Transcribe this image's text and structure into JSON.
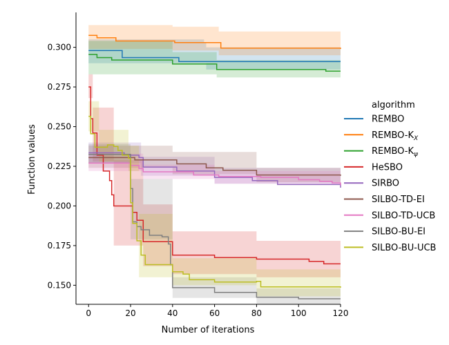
{
  "chart_data": {
    "type": "line",
    "xlabel": "Number of iterations",
    "ylabel": "Function values",
    "xlim": [
      -6,
      120
    ],
    "ylim": [
      0.138,
      0.322
    ],
    "x_ticks": [
      0,
      20,
      40,
      60,
      80,
      100,
      120
    ],
    "y_ticks": [
      0.15,
      0.175,
      0.2,
      0.225,
      0.25,
      0.275,
      0.3
    ],
    "y_tick_labels": [
      "0.150",
      "0.175",
      "0.200",
      "0.225",
      "0.250",
      "0.275",
      "0.300"
    ],
    "grid": false,
    "legend": {
      "title": "algorithm",
      "placement": "right"
    },
    "series": [
      {
        "name": "REMBO",
        "label_main": "REMBO",
        "label_sub": "",
        "color": "#1f77b4",
        "steps": [
          [
            0,
            0.298
          ],
          [
            15,
            0.298
          ],
          [
            16,
            0.2935
          ],
          [
            42,
            0.2935
          ],
          [
            43,
            0.291
          ],
          [
            120,
            0.291
          ]
        ],
        "band": [
          [
            0,
            0.29,
            0.305
          ],
          [
            55,
            0.29,
            0.303
          ],
          [
            56,
            0.286,
            0.3
          ],
          [
            120,
            0.286,
            0.3
          ]
        ]
      },
      {
        "name": "REMBO-K_X",
        "label_main": "REMBO-K",
        "label_sub": "X",
        "color": "#ff7f0e",
        "steps": [
          [
            0,
            0.3075
          ],
          [
            3,
            0.3075
          ],
          [
            4,
            0.306
          ],
          [
            12,
            0.306
          ],
          [
            13,
            0.304
          ],
          [
            40,
            0.304
          ],
          [
            41,
            0.303
          ],
          [
            62,
            0.303
          ],
          [
            63,
            0.2995
          ],
          [
            120,
            0.299
          ]
        ],
        "band": [
          [
            0,
            0.299,
            0.314
          ],
          [
            40,
            0.298,
            0.313
          ],
          [
            62,
            0.295,
            0.31
          ],
          [
            120,
            0.293,
            0.306
          ]
        ]
      },
      {
        "name": "REMBO-K_psi",
        "label_main": "REMBO-K",
        "label_sub": "ψ",
        "color": "#2ca02c",
        "steps": [
          [
            0,
            0.2955
          ],
          [
            3,
            0.2955
          ],
          [
            4,
            0.2935
          ],
          [
            10,
            0.2935
          ],
          [
            11,
            0.292
          ],
          [
            39,
            0.292
          ],
          [
            40,
            0.2895
          ],
          [
            60,
            0.2895
          ],
          [
            61,
            0.286
          ],
          [
            112,
            0.286
          ],
          [
            113,
            0.285
          ],
          [
            120,
            0.285
          ]
        ],
        "band": [
          [
            0,
            0.283,
            0.304
          ],
          [
            40,
            0.283,
            0.297
          ],
          [
            61,
            0.281,
            0.292
          ],
          [
            120,
            0.279,
            0.291
          ]
        ]
      },
      {
        "name": "HeSBO",
        "label_main": "HeSBO",
        "label_sub": "",
        "color": "#d62728",
        "steps": [
          [
            0,
            0.275
          ],
          [
            1,
            0.255
          ],
          [
            2,
            0.246
          ],
          [
            4,
            0.232
          ],
          [
            7,
            0.222
          ],
          [
            10,
            0.216
          ],
          [
            11,
            0.207
          ],
          [
            12,
            0.2
          ],
          [
            20,
            0.2
          ],
          [
            21,
            0.196
          ],
          [
            23,
            0.191
          ],
          [
            26,
            0.1775
          ],
          [
            38,
            0.1775
          ],
          [
            40,
            0.169
          ],
          [
            60,
            0.1675
          ],
          [
            80,
            0.1665
          ],
          [
            105,
            0.165
          ],
          [
            112,
            0.1635
          ],
          [
            120,
            0.1635
          ]
        ],
        "band": [
          [
            0,
            0.268,
            0.283
          ],
          [
            2,
            0.228,
            0.262
          ],
          [
            12,
            0.175,
            0.229
          ],
          [
            26,
            0.162,
            0.201
          ],
          [
            40,
            0.157,
            0.184
          ],
          [
            80,
            0.155,
            0.178
          ],
          [
            120,
            0.15,
            0.179
          ]
        ]
      },
      {
        "name": "SIRBO",
        "label_main": "SIRBO",
        "label_sub": "",
        "color": "#9467bd",
        "steps": [
          [
            0,
            0.2335
          ],
          [
            16,
            0.2335
          ],
          [
            17,
            0.232
          ],
          [
            24,
            0.2305
          ],
          [
            26,
            0.2245
          ],
          [
            40,
            0.2245
          ],
          [
            42,
            0.222
          ],
          [
            60,
            0.218
          ],
          [
            78,
            0.216
          ],
          [
            90,
            0.2135
          ],
          [
            120,
            0.2115
          ]
        ],
        "band": [
          [
            0,
            0.227,
            0.24
          ],
          [
            25,
            0.219,
            0.231
          ],
          [
            60,
            0.214,
            0.224
          ],
          [
            120,
            0.207,
            0.216
          ]
        ]
      },
      {
        "name": "SILBO-TD-EI",
        "label_main": "SILBO-TD-EI",
        "label_sub": "",
        "color": "#8c564b",
        "steps": [
          [
            0,
            0.2305
          ],
          [
            20,
            0.2305
          ],
          [
            22,
            0.229
          ],
          [
            42,
            0.2265
          ],
          [
            56,
            0.224
          ],
          [
            64,
            0.2225
          ],
          [
            80,
            0.2195
          ],
          [
            120,
            0.219
          ]
        ],
        "band": [
          [
            0,
            0.224,
            0.238
          ],
          [
            40,
            0.22,
            0.234
          ],
          [
            80,
            0.215,
            0.224
          ],
          [
            120,
            0.214,
            0.223
          ]
        ]
      },
      {
        "name": "SILBO-TD-UCB",
        "label_main": "SILBO-TD-UCB",
        "label_sub": "",
        "color": "#e377c2",
        "steps": [
          [
            0,
            0.227
          ],
          [
            18,
            0.227
          ],
          [
            20,
            0.2255
          ],
          [
            24,
            0.2235
          ],
          [
            26,
            0.2215
          ],
          [
            48,
            0.2215
          ],
          [
            50,
            0.2195
          ],
          [
            62,
            0.2185
          ],
          [
            82,
            0.218
          ],
          [
            100,
            0.2165
          ],
          [
            110,
            0.2155
          ],
          [
            116,
            0.2145
          ],
          [
            120,
            0.213
          ]
        ],
        "band": [
          [
            0,
            0.222,
            0.233
          ],
          [
            26,
            0.217,
            0.226
          ],
          [
            60,
            0.214,
            0.222
          ],
          [
            120,
            0.208,
            0.217
          ]
        ]
      },
      {
        "name": "SILBO-BU-EI",
        "label_main": "SILBO-BU-EI",
        "label_sub": "",
        "color": "#7f7f7f",
        "steps": [
          [
            0,
            0.2325
          ],
          [
            18,
            0.2325
          ],
          [
            20,
            0.211
          ],
          [
            21,
            0.19
          ],
          [
            23,
            0.187
          ],
          [
            25,
            0.185
          ],
          [
            29,
            0.1815
          ],
          [
            35,
            0.1805
          ],
          [
            38,
            0.176
          ],
          [
            39,
            0.163
          ],
          [
            40,
            0.1485
          ],
          [
            60,
            0.1455
          ],
          [
            80,
            0.1425
          ],
          [
            100,
            0.1415
          ],
          [
            120,
            0.1415
          ]
        ],
        "band": [
          [
            0,
            0.227,
            0.239
          ],
          [
            20,
            0.179,
            0.217
          ],
          [
            40,
            0.142,
            0.155
          ],
          [
            80,
            0.138,
            0.148
          ],
          [
            120,
            0.138,
            0.146
          ]
        ]
      },
      {
        "name": "SILBO-BU-UCB",
        "label_main": "SILBO-BU-UCB",
        "label_sub": "",
        "color": "#bcbd22",
        "steps": [
          [
            0,
            0.2565
          ],
          [
            1,
            0.2455
          ],
          [
            3,
            0.237
          ],
          [
            9,
            0.2385
          ],
          [
            12,
            0.2375
          ],
          [
            14,
            0.235
          ],
          [
            16,
            0.232
          ],
          [
            19,
            0.23
          ],
          [
            20,
            0.202
          ],
          [
            21,
            0.189
          ],
          [
            23,
            0.178
          ],
          [
            25,
            0.169
          ],
          [
            27,
            0.163
          ],
          [
            37,
            0.163
          ],
          [
            40,
            0.1585
          ],
          [
            45,
            0.157
          ],
          [
            48,
            0.1535
          ],
          [
            60,
            0.152
          ],
          [
            80,
            0.1525
          ],
          [
            82,
            0.149
          ],
          [
            120,
            0.1485
          ]
        ],
        "band": [
          [
            0,
            0.247,
            0.266
          ],
          [
            5,
            0.228,
            0.248
          ],
          [
            19,
            0.222,
            0.238
          ],
          [
            24,
            0.155,
            0.195
          ],
          [
            40,
            0.15,
            0.167
          ],
          [
            80,
            0.143,
            0.16
          ],
          [
            120,
            0.14,
            0.158
          ]
        ]
      }
    ]
  }
}
